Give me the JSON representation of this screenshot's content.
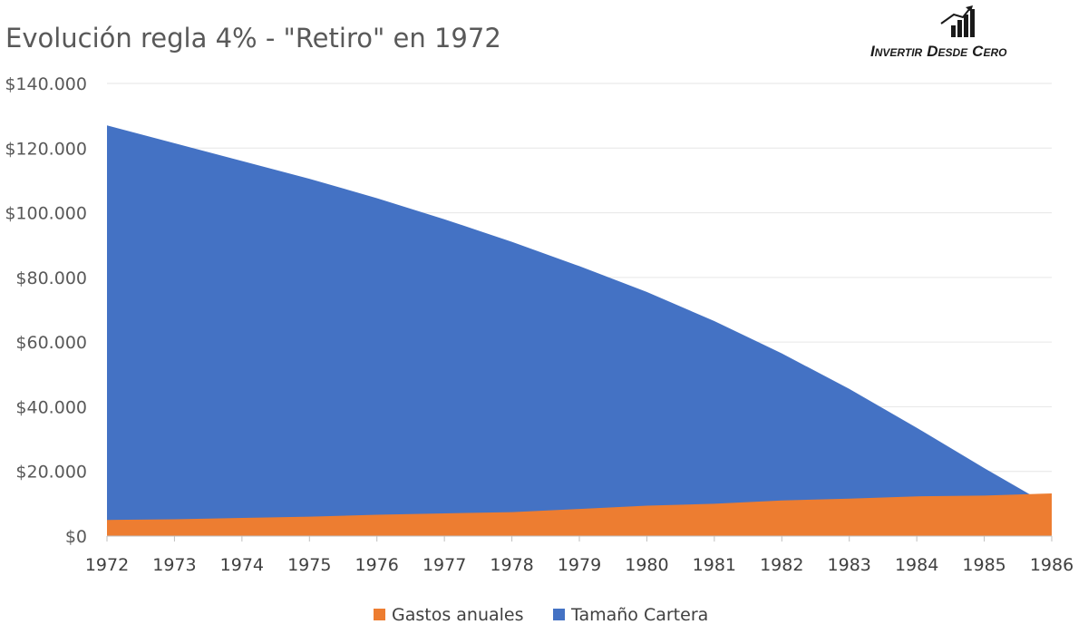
{
  "chart_data": {
    "type": "area",
    "title": "Evolución regla 4% - \"Retiro\" en 1972",
    "x": [
      "1972",
      "1973",
      "1974",
      "1975",
      "1976",
      "1977",
      "1978",
      "1979",
      "1980",
      "1981",
      "1982",
      "1983",
      "1984",
      "1985",
      "1986"
    ],
    "series": [
      {
        "name": "Tamaño Cartera",
        "color": "#4472c4",
        "values": [
          127000,
          121500,
          116000,
          110500,
          104500,
          98000,
          91000,
          83500,
          75500,
          66500,
          56500,
          45500,
          33500,
          21000,
          9000
        ]
      },
      {
        "name": "Gastos anuales",
        "color": "#ed7d31",
        "values": [
          5000,
          5200,
          5600,
          6000,
          6600,
          7000,
          7400,
          8400,
          9400,
          10000,
          11000,
          11600,
          12300,
          12500,
          13200
        ]
      }
    ],
    "ylim": [
      0,
      140000
    ],
    "yticks": [
      "$0",
      "$20.000",
      "$40.000",
      "$60.000",
      "$80.000",
      "$100.000",
      "$120.000",
      "$140.000"
    ],
    "grid": true,
    "legend_position": "bottom",
    "legend": [
      "Gastos anuales",
      "Tamaño Cartera"
    ]
  },
  "logo": {
    "text": "Invertir Desde Cero",
    "icon": "bar-chart-arrow-icon"
  }
}
